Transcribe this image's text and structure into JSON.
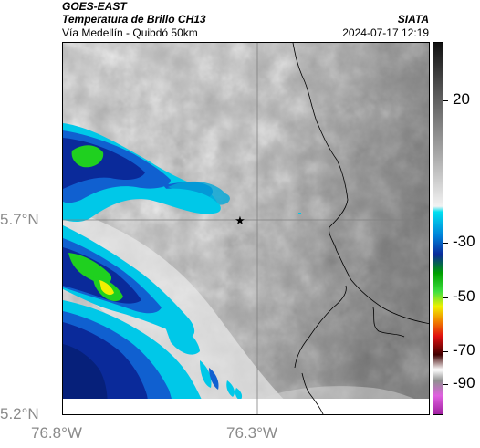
{
  "header": {
    "satellite": "GOES-EAST",
    "product": "Temperatura de Brillo CH13",
    "agency": "SIATA",
    "route": "Vía Medellín - Quibdó 50km",
    "timestamp": "2024-07-17 12:19"
  },
  "map": {
    "lat_ticks": [
      "5.7°N",
      "5.2°N"
    ],
    "lon_ticks": [
      "76.8°W",
      "76.3°W"
    ],
    "marker_icon": "star-icon"
  },
  "colorbar": {
    "labels": [
      "20",
      "-30",
      "-50",
      "-70",
      "-90"
    ],
    "colors": {
      "warm_gray": "#bdbdbd",
      "cyan": "#00c8e8",
      "blue": "#0a2a9a",
      "green": "#1fd01f",
      "yellow": "#f0f000",
      "red": "#e01010",
      "magenta": "#c040c0"
    }
  }
}
